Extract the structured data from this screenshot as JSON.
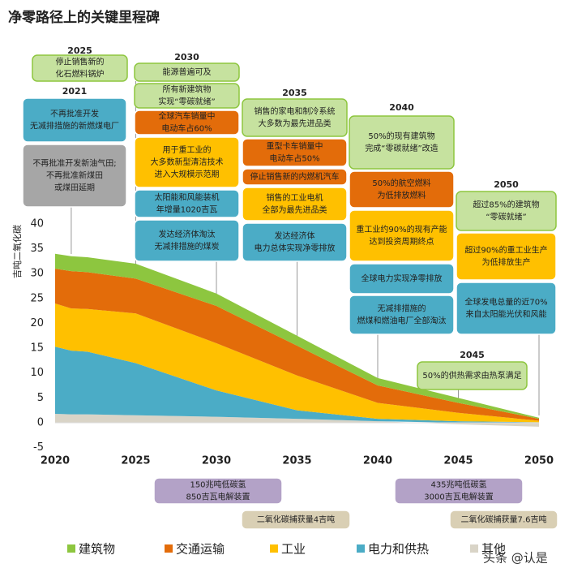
{
  "chart_data": {
    "type": "stacked-area",
    "title": "净零路径上的关键里程碑",
    "y_label": "吉吨二氧化碳",
    "x": [
      2020,
      2021,
      2022,
      2025,
      2030,
      2035,
      2040,
      2045,
      2050
    ],
    "xlim": [
      2020,
      2050
    ],
    "xticks": [
      2020,
      2025,
      2030,
      2035,
      2040,
      2045,
      2050
    ],
    "ylim": [
      -5,
      40
    ],
    "yticks": [
      -5,
      0,
      5,
      10,
      15,
      20,
      25,
      30,
      35,
      40
    ],
    "series": [
      {
        "name": "其他",
        "color": "#d9d4c7",
        "values": [
          1.8,
          1.7,
          1.7,
          1.5,
          1.2,
          0.8,
          0.3,
          -0.3,
          -0.8
        ]
      },
      {
        "name": "电力和供热",
        "color": "#4bacc6",
        "values": [
          13.5,
          12.8,
          12.6,
          10.5,
          5.3,
          1.7,
          0.5,
          0.3,
          0.1
        ]
      },
      {
        "name": "工业",
        "color": "#ffc000",
        "values": [
          8.7,
          8.5,
          8.6,
          10,
          9.5,
          7,
          3.2,
          1.7,
          0.3
        ]
      },
      {
        "name": "交通运输",
        "color": "#e36c0a",
        "values": [
          7,
          7.5,
          7.4,
          7,
          7.5,
          6,
          3.5,
          2,
          0.4
        ]
      },
      {
        "name": "建筑物",
        "color": "#8dc63f",
        "values": [
          3,
          3,
          3,
          3,
          2.5,
          2,
          1.5,
          1,
          0.2
        ]
      }
    ],
    "milestones": [
      {
        "year": "2025",
        "boxes": [
          {
            "color": "#c6e29f",
            "lines": [
              "停止销售新的",
              "化石燃料锅炉"
            ]
          }
        ]
      },
      {
        "year": "2021",
        "boxes": [
          {
            "color": "#4bacc6",
            "lines": [
              "不再批准开发",
              "无减排措施的新燃煤电厂"
            ]
          },
          {
            "color": "#a6a6a6",
            "lines": [
              "不再批准开发新油气田;",
              "不再批准新煤田",
              "或煤田延期"
            ]
          }
        ]
      },
      {
        "year": "2030",
        "boxes": [
          {
            "color": "#c6e29f",
            "lines": [
              "能源普遍可及"
            ]
          },
          {
            "color": "#c6e29f",
            "lines": [
              "所有新建筑物",
              "实现“零碳就绪”"
            ]
          },
          {
            "color": "#e36c0a",
            "lines": [
              "全球汽车销量中",
              "电动车占60%"
            ]
          },
          {
            "color": "#ffc000",
            "lines": [
              "用于重工业的",
              "大多数新型清洁技术",
              "进入大规模示范期"
            ]
          },
          {
            "color": "#4bacc6",
            "lines": [
              "太阳能和风能装机",
              "年增量1020吉瓦"
            ]
          },
          {
            "color": "#4bacc6",
            "lines": [
              "发达经济体淘汰",
              "无减排措施的煤炭"
            ]
          }
        ]
      },
      {
        "year": "2035",
        "boxes": [
          {
            "color": "#c6e29f",
            "lines": [
              "销售的家电和制冷系统",
              "大多数为最先进品类"
            ]
          },
          {
            "color": "#e36c0a",
            "lines": [
              "重型卡车销量中",
              "电动车占50%"
            ]
          },
          {
            "color": "#e36c0a",
            "lines": [
              "停止销售新的内燃机汽车"
            ]
          },
          {
            "color": "#ffc000",
            "lines": [
              "销售的工业电机",
              "全部为最先进品类"
            ]
          },
          {
            "color": "#4bacc6",
            "lines": [
              "发达经济体",
              "电力总体实现净零排放"
            ]
          }
        ]
      },
      {
        "year": "2040",
        "boxes": [
          {
            "color": "#c6e29f",
            "lines": [
              "50%的现有建筑物",
              "完成“零碳就绪”改造"
            ]
          },
          {
            "color": "#e36c0a",
            "lines": [
              "50%的航空燃料",
              "为低排放燃料"
            ]
          },
          {
            "color": "#ffc000",
            "lines": [
              "重工业约90%的现有产能",
              "达到投资周期终点"
            ]
          },
          {
            "color": "#4bacc6",
            "lines": [
              "全球电力实现净零排放"
            ]
          },
          {
            "color": "#4bacc6",
            "lines": [
              "无减排措施的",
              "燃煤和燃油电厂全部淘汰"
            ]
          }
        ]
      },
      {
        "year": "2050",
        "boxes": [
          {
            "color": "#c6e29f",
            "lines": [
              "超过85%的建筑物",
              "“零碳就绪”"
            ]
          },
          {
            "color": "#ffc000",
            "lines": [
              "超过90%的重工业生产",
              "为低排放生产"
            ]
          },
          {
            "color": "#4bacc6",
            "lines": [
              "全球发电总量的近70%",
              "来自太阳能光伏和风能"
            ]
          }
        ]
      },
      {
        "year": "2045",
        "boxes": [
          {
            "color": "#c6e29f",
            "lines": [
              "50%的供热需求由热泵满足"
            ]
          }
        ]
      }
    ],
    "bottom_notes": [
      {
        "color": "#b3a2c7",
        "lines": [
          "150兆吨低碳氢",
          "850吉瓦电解装置"
        ]
      },
      {
        "color": "#b3a2c7",
        "lines": [
          "435兆吨低碳氢",
          "3000吉瓦电解装置"
        ]
      },
      {
        "color": "#d9cfb4",
        "lines": [
          "二氧化碳捕获量4吉吨"
        ]
      },
      {
        "color": "#d9cfb4",
        "lines": [
          "二氧化碳捕获量7.6吉吨"
        ]
      }
    ],
    "watermark": "头条 @认是"
  }
}
